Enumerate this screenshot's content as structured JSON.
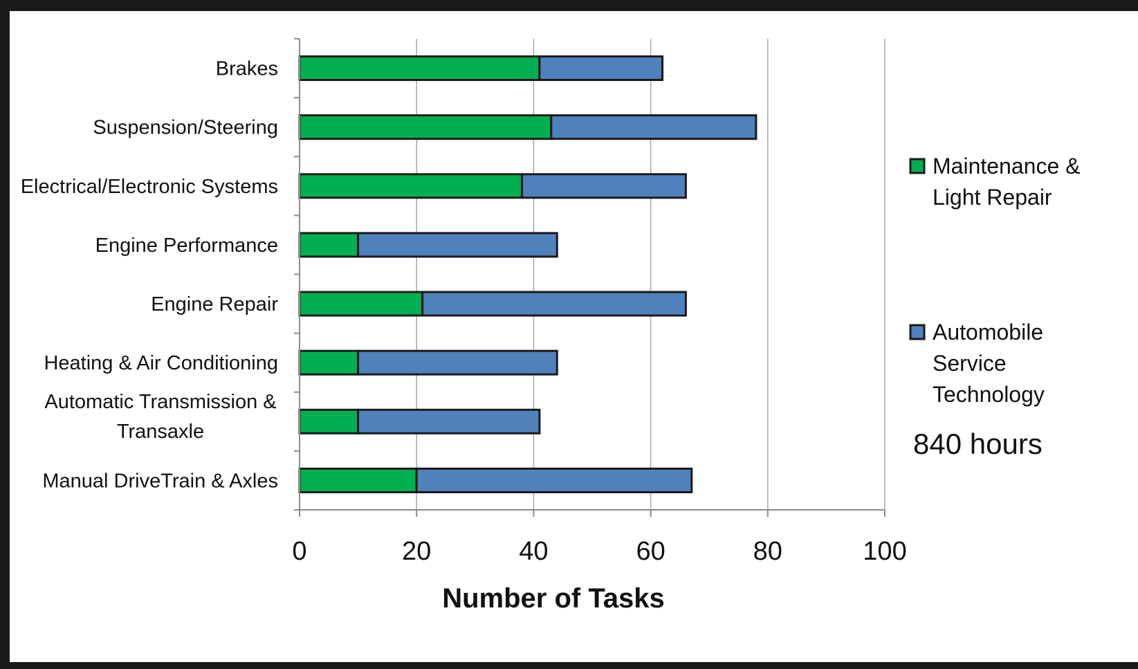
{
  "chart_data": {
    "type": "bar",
    "orientation": "horizontal",
    "stacked": true,
    "categories": [
      [
        "Brakes"
      ],
      [
        "Suspension/Steering"
      ],
      [
        "Electrical/Electronic Systems"
      ],
      [
        "Engine Performance"
      ],
      [
        "Engine Repair"
      ],
      [
        "Heating & Air Conditioning"
      ],
      [
        "Automatic Transmission &",
        "Transaxle"
      ],
      [
        "Manual DriveTrain & Axles"
      ]
    ],
    "series": [
      {
        "name": "Maintenance & Light Repair",
        "name_lines": [
          "Maintenance &",
          "Light Repair"
        ],
        "color": "#00b050",
        "values": [
          41,
          43,
          38,
          10,
          21,
          10,
          10,
          20
        ]
      },
      {
        "name": "Automobile Service Technology",
        "name_lines": [
          "Automobile",
          "Service",
          "Technology"
        ],
        "color": "#4f81bd",
        "values": [
          21,
          35,
          28,
          34,
          45,
          34,
          31,
          47
        ]
      }
    ],
    "xlabel": "Number of Tasks",
    "xlim": [
      0,
      100
    ],
    "xticks": [
      "0",
      "20",
      "40",
      "60",
      "80",
      "100"
    ],
    "grid": true,
    "legend_position": "right",
    "note": "840 hours"
  }
}
